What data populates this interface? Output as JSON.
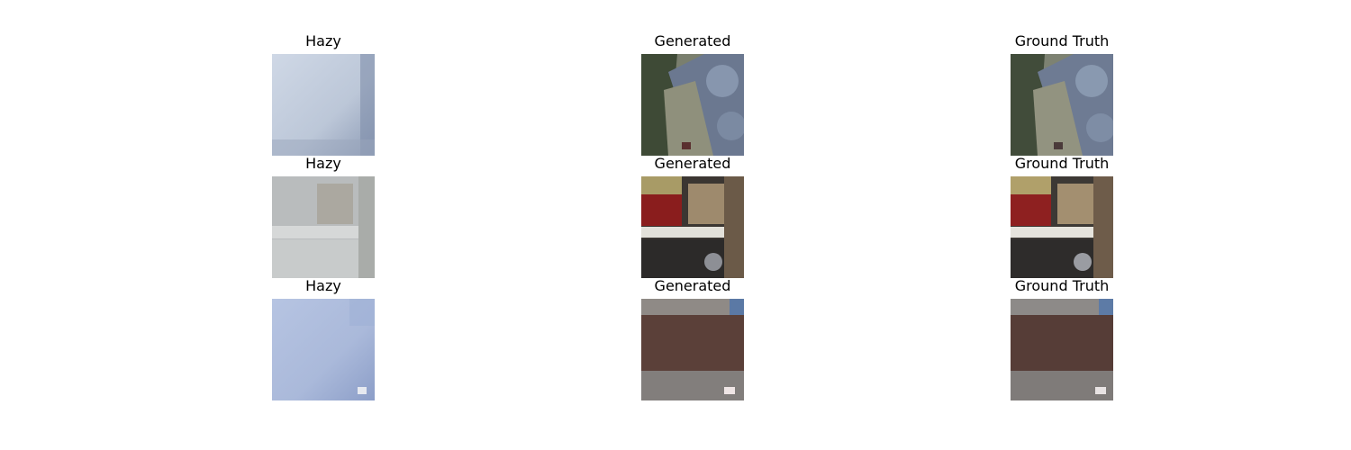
{
  "figure": {
    "rows": [
      {
        "hazy": {
          "title": "Hazy",
          "scene": "garden-path-hazy"
        },
        "generated": {
          "title": "Generated",
          "scene": "garden-path"
        },
        "ground_truth": {
          "title": "Ground Truth",
          "scene": "garden-path"
        }
      },
      {
        "hazy": {
          "title": "Hazy",
          "scene": "indoor-room-hazy"
        },
        "generated": {
          "title": "Generated",
          "scene": "indoor-room"
        },
        "ground_truth": {
          "title": "Ground Truth",
          "scene": "indoor-room"
        }
      },
      {
        "hazy": {
          "title": "Hazy",
          "scene": "hedge-fence-hazy"
        },
        "generated": {
          "title": "Generated",
          "scene": "hedge-fence"
        },
        "ground_truth": {
          "title": "Ground Truth",
          "scene": "hedge-fence"
        }
      }
    ]
  }
}
